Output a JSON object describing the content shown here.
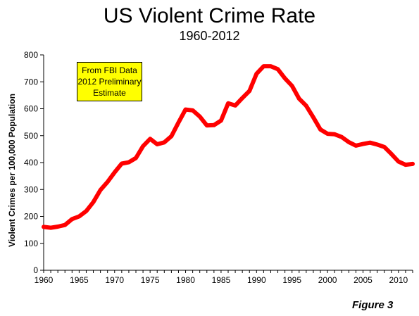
{
  "chart_data": {
    "type": "line",
    "title": "US Violent Crime Rate",
    "subtitle": "1960-2012",
    "ylabel": "Violent Crimes per 100,000 Population",
    "xlabel": "",
    "ylim": [
      0,
      800
    ],
    "xlim": [
      1960,
      2012
    ],
    "y_ticks": [
      0,
      100,
      200,
      300,
      400,
      500,
      600,
      700,
      800
    ],
    "x_ticks": [
      1960,
      1965,
      1970,
      1975,
      1980,
      1985,
      1990,
      1995,
      2000,
      2005,
      2010
    ],
    "grid": false,
    "legend": "none",
    "line_color": "#ff0000",
    "x": [
      1960,
      1961,
      1962,
      1963,
      1964,
      1965,
      1966,
      1967,
      1968,
      1969,
      1970,
      1971,
      1972,
      1973,
      1974,
      1975,
      1976,
      1977,
      1978,
      1979,
      1980,
      1981,
      1982,
      1983,
      1984,
      1985,
      1986,
      1987,
      1988,
      1989,
      1990,
      1991,
      1992,
      1993,
      1994,
      1995,
      1996,
      1997,
      1998,
      1999,
      2000,
      2001,
      2002,
      2003,
      2004,
      2005,
      2006,
      2007,
      2008,
      2009,
      2010,
      2011,
      2012
    ],
    "y": [
      161,
      158,
      162,
      168,
      190,
      200,
      220,
      253,
      298,
      328,
      364,
      396,
      401,
      417,
      461,
      488,
      468,
      475,
      498,
      549,
      597,
      594,
      571,
      538,
      539,
      556,
      620,
      612,
      640,
      666,
      730,
      758,
      758,
      747,
      713,
      685,
      637,
      611,
      568,
      523,
      507,
      505,
      495,
      476,
      463,
      469,
      474,
      467,
      458,
      432,
      404,
      392,
      395
    ]
  },
  "annotation": {
    "line1": "From FBI  Data",
    "line2": "2012 Preliminary",
    "line3": "Estimate",
    "color": "#ffff00"
  },
  "figure_label": "Figure 3"
}
